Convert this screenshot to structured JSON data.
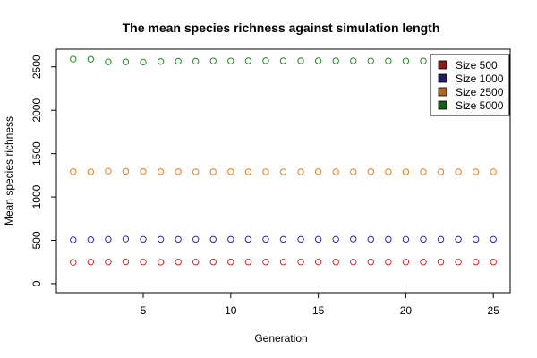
{
  "chart_data": {
    "type": "scatter",
    "title": "The mean species richness against simulation length",
    "xlabel": "Generation",
    "ylabel": "Mean species richness",
    "xlim": [
      0.04,
      25.96
    ],
    "ylim": [
      -104,
      2704
    ],
    "x_ticks": [
      5,
      10,
      15,
      20,
      25
    ],
    "y_ticks": [
      0,
      500,
      1000,
      1500,
      2000,
      2500
    ],
    "grid": false,
    "legend_position": "top-right",
    "marker": "open-circle",
    "x": [
      1,
      2,
      3,
      4,
      5,
      6,
      7,
      8,
      9,
      10,
      11,
      12,
      13,
      14,
      15,
      16,
      17,
      18,
      19,
      20,
      21,
      22,
      23,
      24,
      25
    ],
    "series": [
      {
        "name": "Size 500",
        "stroke": "#cc2a2a",
        "legend_fill": "#8b1a1a",
        "values": [
          245,
          250,
          250,
          252,
          250,
          248,
          250,
          250,
          250,
          250,
          250,
          250,
          250,
          250,
          250,
          250,
          250,
          250,
          250,
          250,
          250,
          250,
          250,
          250,
          250
        ]
      },
      {
        "name": "Size 1000",
        "stroke": "#2a2aa8",
        "legend_fill": "#1f1f5e",
        "values": [
          505,
          508,
          512,
          515,
          512,
          512,
          512,
          512,
          512,
          512,
          512,
          512,
          512,
          512,
          512,
          512,
          515,
          512,
          512,
          512,
          512,
          512,
          512,
          512,
          512
        ]
      },
      {
        "name": "Size 2500",
        "stroke": "#e07a1f",
        "legend_fill": "#b5651d",
        "values": [
          1292,
          1290,
          1298,
          1296,
          1293,
          1292,
          1292,
          1290,
          1290,
          1292,
          1290,
          1290,
          1290,
          1290,
          1292,
          1290,
          1290,
          1292,
          1290,
          1290,
          1290,
          1290,
          1290,
          1290,
          1290
        ]
      },
      {
        "name": "Size 5000",
        "stroke": "#1f8a1f",
        "legend_fill": "#1a5c1a",
        "values": [
          2590,
          2588,
          2558,
          2558,
          2555,
          2562,
          2565,
          2565,
          2568,
          2568,
          2570,
          2572,
          2570,
          2570,
          2570,
          2570,
          2570,
          2568,
          2568,
          2568,
          2568,
          2568,
          2568,
          2568,
          2568
        ]
      }
    ]
  }
}
